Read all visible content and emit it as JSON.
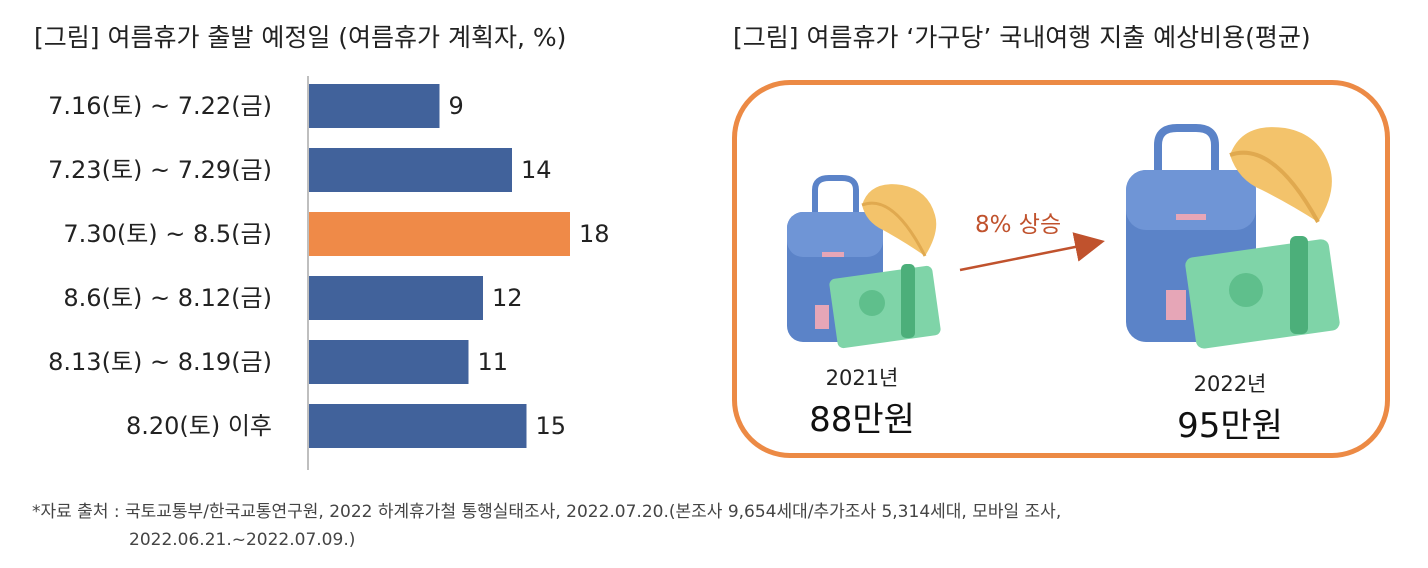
{
  "left_title": "[그림] 여름휴가 출발 예정일 (여름휴가 계획자, %)",
  "right_title": "[그림] 여름휴가 ‘가구당’ 국내여행 지출 예상비용(평균)",
  "chart_data": {
    "type": "bar",
    "orientation": "horizontal",
    "categories": [
      "7.16(토) ~ 7.22(금)",
      "7.23(토) ~ 7.29(금)",
      "7.30(토) ~ 8.5(금)",
      "8.6(토) ~ 8.12(금)",
      "8.13(토) ~ 8.19(금)",
      "8.20(토) 이후"
    ],
    "values": [
      9,
      14,
      18,
      12,
      11,
      15
    ],
    "unit": "%",
    "highlight_index": 2,
    "colors": {
      "default": "#41629b",
      "highlight": "#ef8a48"
    },
    "xlim": [
      0,
      20
    ]
  },
  "travel_cost": {
    "items": [
      {
        "year": "2021년",
        "amount": "88만원"
      },
      {
        "year": "2022년",
        "amount": "95만원"
      }
    ],
    "change_label": "8% 상승",
    "colors": {
      "frame": "#ec8a45",
      "arrow": "#c0522d",
      "bag": "#5b83c8",
      "money": "#7fd4a8",
      "hat": "#f3c36b"
    }
  },
  "source_lines": [
    "*자료 출처 : 국토교통부/한국교통연구원, 2022 하계휴가철 통행실태조사, 2022.07.20.(본조사 9,654세대/추가조사 5,314세대, 모바일 조사,",
    "2022.06.21.~2022.07.09.)"
  ]
}
